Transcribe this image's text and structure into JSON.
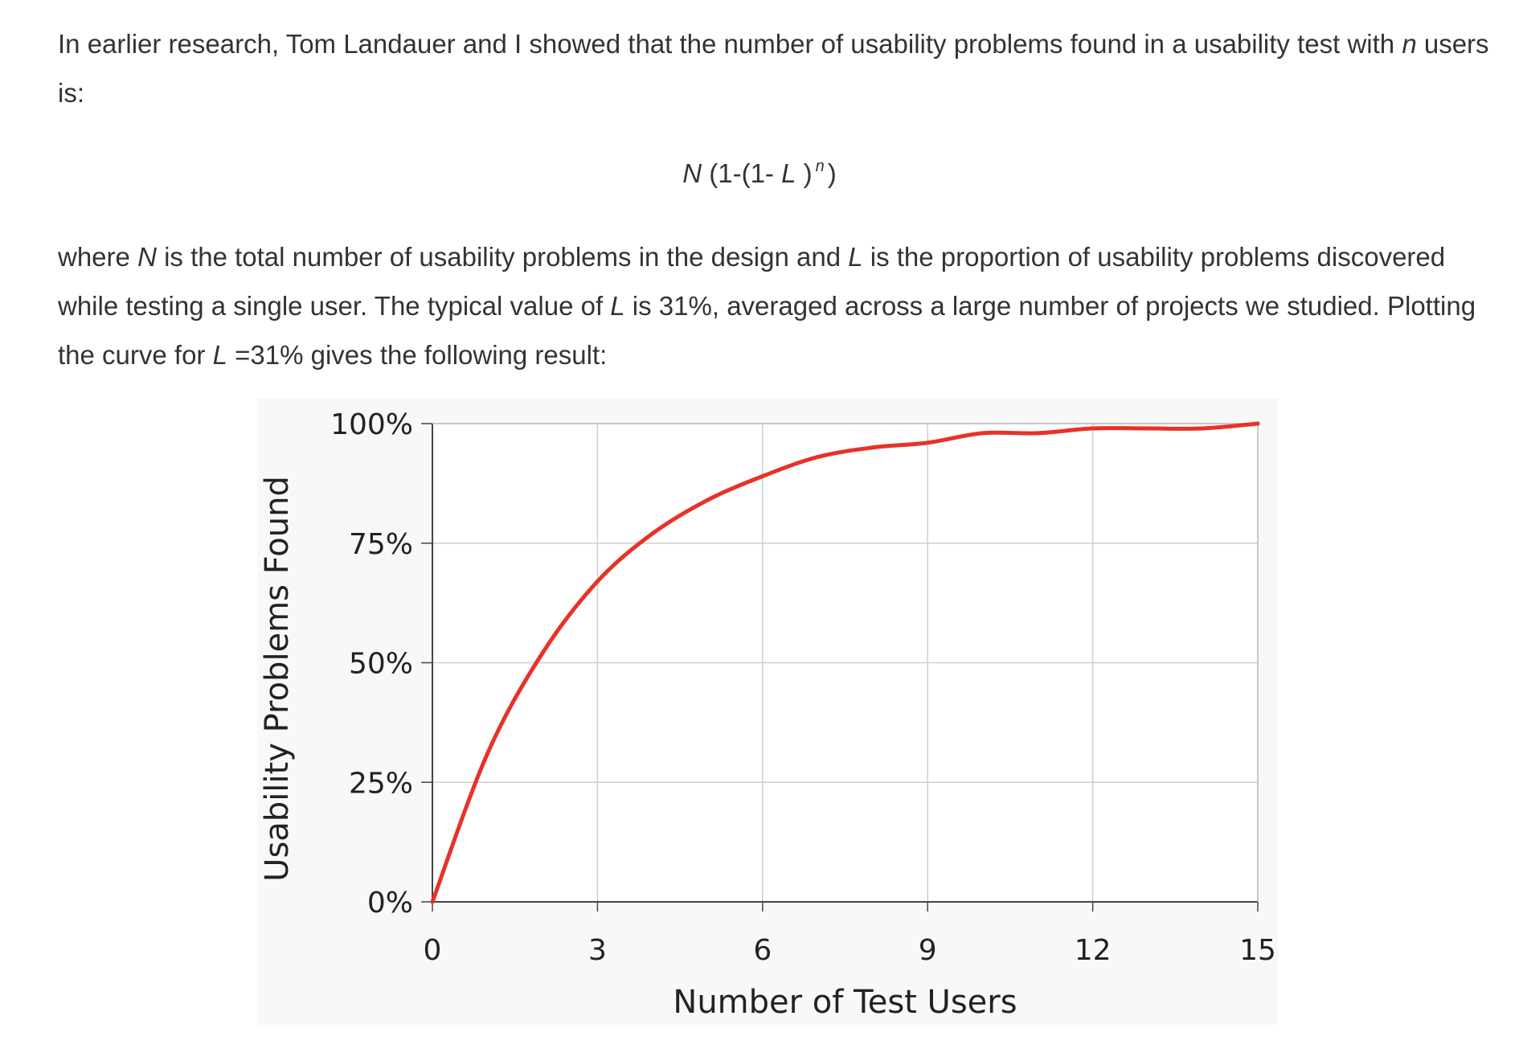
{
  "article": {
    "p1_a": "In earlier research, Tom Landauer and I showed that the number of usability problems found in a usability test with ",
    "p1_n": "n",
    "p1_b": " users is:",
    "formula": {
      "n_var": "N",
      "part1": " (1-(1- ",
      "l_var": "L",
      "part2": " )",
      "exp": "n",
      "part3": ")"
    },
    "p2_a": "where ",
    "p2_N": "N",
    "p2_b": " is the total number of usability problems in the design and ",
    "p2_L1": "L",
    "p2_c": " is the proportion of usability problems discovered while testing a single user. The typical value of ",
    "p2_L2": "L",
    "p2_d": " is 31%, averaged across a large number of projects we studied. Plotting the curve for ",
    "p2_L3": "L",
    "p2_e": " =31% gives the following result:"
  },
  "chart_data": {
    "type": "line",
    "xlabel": "Number of Test Users",
    "ylabel": "Usability Problems Found",
    "xlim": [
      0,
      15
    ],
    "ylim": [
      0,
      100
    ],
    "x_ticks": [
      "0",
      "3",
      "6",
      "9",
      "12",
      "15"
    ],
    "y_ticks": [
      "0%",
      "25%",
      "50%",
      "75%",
      "100%"
    ],
    "grid": true,
    "line_color": "#e8312a",
    "series": [
      {
        "x": [
          0,
          1,
          2,
          3,
          4,
          5,
          6,
          7,
          8,
          9,
          10,
          11,
          12,
          13,
          14,
          15
        ],
        "values": [
          0,
          31,
          52,
          67,
          77,
          84,
          89,
          93,
          95,
          96,
          98,
          98,
          99,
          99,
          99,
          100
        ]
      }
    ]
  }
}
